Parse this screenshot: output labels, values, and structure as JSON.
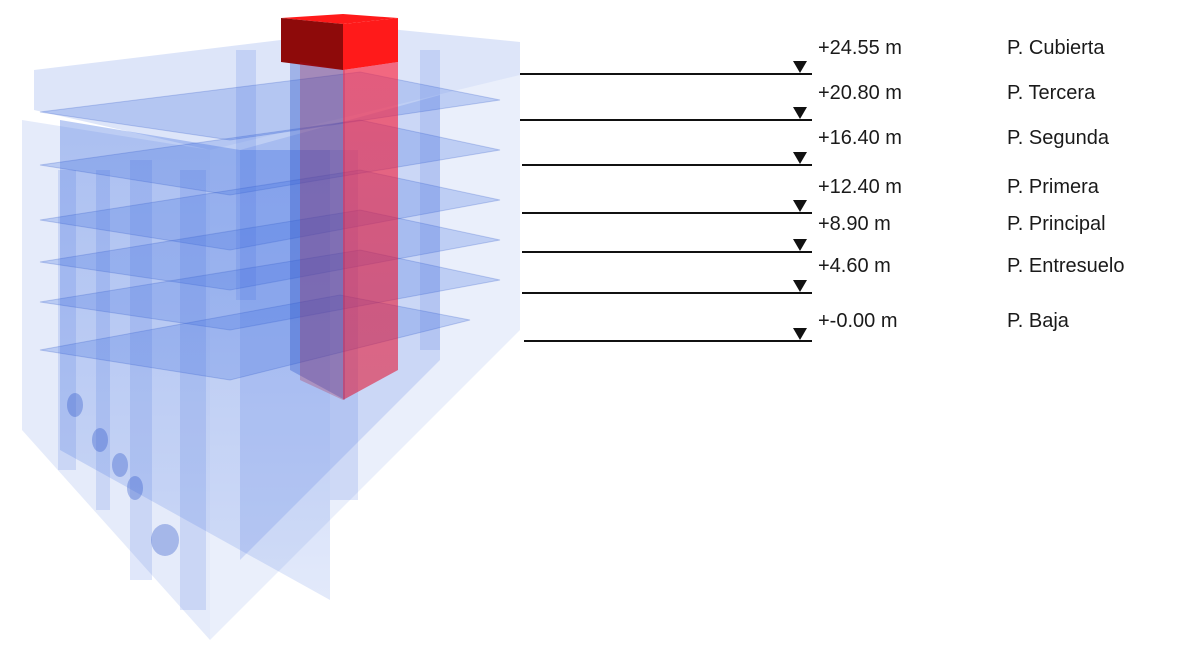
{
  "levels": [
    {
      "elevation": "+24.55 m",
      "floor": "P. Cubierta"
    },
    {
      "elevation": "+20.80 m",
      "floor": "P. Tercera"
    },
    {
      "elevation": "+16.40 m",
      "floor": "P. Segunda"
    },
    {
      "elevation": "+12.40 m",
      "floor": "P. Primera"
    },
    {
      "elevation": "+8.90 m",
      "floor": "P. Principal"
    },
    {
      "elevation": "+4.60 m",
      "floor": "P. Entresuelo"
    },
    {
      "elevation": "+-0.00 m",
      "floor": "P. Baja"
    }
  ],
  "colors": {
    "building": "#4f78e6",
    "core": "#e8102a",
    "core_top": "#ff1a1a",
    "core_dark": "#8e0a0a",
    "line": "#111111"
  }
}
